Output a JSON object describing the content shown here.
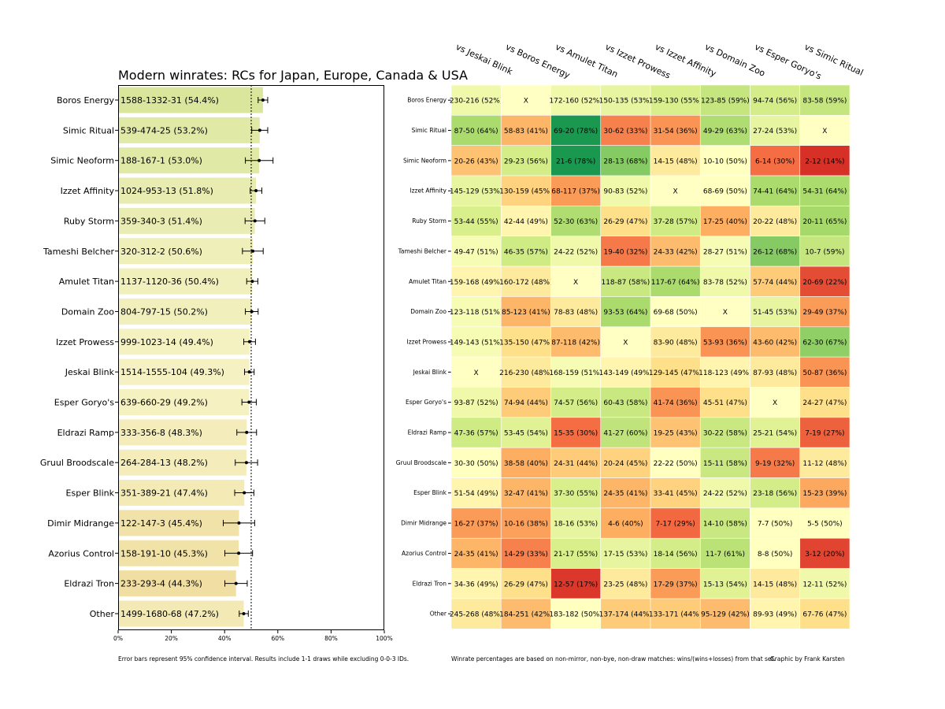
{
  "chart_data": [
    {
      "type": "bar",
      "title": "Modern winrates: RCs for Japan, Europe, Canada & USA",
      "categories": [
        "Boros Energy",
        "Simic Ritual",
        "Simic Neoform",
        "Izzet Affinity",
        "Ruby Storm",
        "Tameshi Belcher",
        "Amulet Titan",
        "Domain Zoo",
        "Izzet Prowess",
        "Jeskai Blink",
        "Esper Goryo's",
        "Eldrazi Ramp",
        "Gruul Broodscale",
        "Esper Blink",
        "Dimir Midrange",
        "Azorius Control",
        "Eldrazi Tron",
        "Other"
      ],
      "bar_labels": [
        "1588-1332-31 (54.4%)",
        "539-474-25 (53.2%)",
        "188-167-1 (53.0%)",
        "1024-953-13 (51.8%)",
        "359-340-3 (51.4%)",
        "320-312-2 (50.6%)",
        "1137-1120-36 (50.4%)",
        "804-797-15 (50.2%)",
        "999-1023-14 (49.4%)",
        "1514-1555-104 (49.3%)",
        "639-660-29 (49.2%)",
        "333-356-8 (48.3%)",
        "264-284-13 (48.2%)",
        "351-389-21 (47.4%)",
        "122-147-3 (45.4%)",
        "158-191-10 (45.3%)",
        "233-293-4 (44.3%)",
        "1499-1680-68 (47.2%)"
      ],
      "values": [
        54.4,
        53.2,
        53.0,
        51.8,
        51.4,
        50.6,
        50.4,
        50.2,
        49.4,
        49.3,
        49.2,
        48.3,
        48.2,
        47.4,
        45.4,
        45.3,
        44.3,
        47.2
      ],
      "ci_low": [
        52.6,
        50.2,
        47.8,
        49.6,
        47.7,
        46.7,
        48.3,
        47.8,
        47.2,
        47.5,
        46.5,
        44.6,
        44.0,
        43.8,
        39.5,
        40.1,
        40.1,
        45.5
      ],
      "ci_high": [
        56.2,
        56.2,
        58.2,
        54.0,
        55.1,
        54.5,
        52.5,
        52.6,
        51.6,
        51.1,
        51.9,
        52.0,
        52.4,
        51.0,
        51.3,
        50.5,
        48.5,
        48.9
      ],
      "xlim": [
        0,
        100
      ],
      "xticks": [
        "0%",
        "20%",
        "40%",
        "60%",
        "80%",
        "100%"
      ],
      "reference_line": 50,
      "footnote": "Error bars represent 95% confidence interval. Results include 1-1 draws while excluding 0-0-3 IDs."
    },
    {
      "type": "heatmap",
      "columns": [
        "vs Jeskai Blink",
        "vs Boros Energy",
        "vs Amulet Titan",
        "vs Izzet Prowess",
        "vs Izzet Affinity",
        "vs Domain Zoo",
        "vs Esper Goryo's",
        "vs Simic Ritual"
      ],
      "rows": [
        "Boros Energy",
        "Simic Ritual",
        "Simic Neoform",
        "Izzet Affinity",
        "Ruby Storm",
        "Tameshi Belcher",
        "Amulet Titan",
        "Domain Zoo",
        "Izzet Prowess",
        "Jeskai Blink",
        "Esper Goryo's",
        "Eldrazi Ramp",
        "Gruul Broodscale",
        "Esper Blink",
        "Dimir Midrange",
        "Azorius Control",
        "Eldrazi Tron",
        "Other"
      ],
      "cells": [
        [
          "230-216 (52%)",
          "X",
          "172-160 (52%)",
          "150-135 (53%)",
          "159-130 (55%)",
          "123-85 (59%)",
          "94-74 (56%)",
          "83-58 (59%)"
        ],
        [
          "87-50 (64%)",
          "58-83 (41%)",
          "69-20 (78%)",
          "30-62 (33%)",
          "31-54 (36%)",
          "49-29 (63%)",
          "27-24 (53%)",
          "X"
        ],
        [
          "20-26 (43%)",
          "29-23 (56%)",
          "21-6 (78%)",
          "28-13 (68%)",
          "14-15 (48%)",
          "10-10 (50%)",
          "6-14 (30%)",
          "2-12 (14%)"
        ],
        [
          "145-129 (53%)",
          "130-159 (45%)",
          "68-117 (37%)",
          "90-83 (52%)",
          "X",
          "68-69 (50%)",
          "74-41 (64%)",
          "54-31 (64%)"
        ],
        [
          "53-44 (55%)",
          "42-44 (49%)",
          "52-30 (63%)",
          "26-29 (47%)",
          "37-28 (57%)",
          "17-25 (40%)",
          "20-22 (48%)",
          "20-11 (65%)"
        ],
        [
          "49-47 (51%)",
          "46-35 (57%)",
          "24-22 (52%)",
          "19-40 (32%)",
          "24-33 (42%)",
          "28-27 (51%)",
          "26-12 (68%)",
          "10-7 (59%)"
        ],
        [
          "159-168 (49%)",
          "160-172 (48%)",
          "X",
          "118-87 (58%)",
          "117-67 (64%)",
          "83-78 (52%)",
          "57-74 (44%)",
          "20-69 (22%)"
        ],
        [
          "123-118 (51%)",
          "85-123 (41%)",
          "78-83 (48%)",
          "93-53 (64%)",
          "69-68 (50%)",
          "X",
          "51-45 (53%)",
          "29-49 (37%)"
        ],
        [
          "149-143 (51%)",
          "135-150 (47%)",
          "87-118 (42%)",
          "X",
          "83-90 (48%)",
          "53-93 (36%)",
          "43-60 (42%)",
          "62-30 (67%)"
        ],
        [
          "X",
          "216-230 (48%)",
          "168-159 (51%)",
          "143-149 (49%)",
          "129-145 (47%)",
          "118-123 (49%)",
          "87-93 (48%)",
          "50-87 (36%)"
        ],
        [
          "93-87 (52%)",
          "74-94 (44%)",
          "74-57 (56%)",
          "60-43 (58%)",
          "41-74 (36%)",
          "45-51 (47%)",
          "X",
          "24-27 (47%)"
        ],
        [
          "47-36 (57%)",
          "53-45 (54%)",
          "15-35 (30%)",
          "41-27 (60%)",
          "19-25 (43%)",
          "30-22 (58%)",
          "25-21 (54%)",
          "7-19 (27%)"
        ],
        [
          "30-30 (50%)",
          "38-58 (40%)",
          "24-31 (44%)",
          "20-24 (45%)",
          "22-22 (50%)",
          "15-11 (58%)",
          "9-19 (32%)",
          "11-12 (48%)"
        ],
        [
          "51-54 (49%)",
          "32-47 (41%)",
          "37-30 (55%)",
          "24-35 (41%)",
          "33-41 (45%)",
          "24-22 (52%)",
          "23-18 (56%)",
          "15-23 (39%)"
        ],
        [
          "16-27 (37%)",
          "10-16 (38%)",
          "18-16 (53%)",
          "4-6 (40%)",
          "7-17 (29%)",
          "14-10 (58%)",
          "7-7 (50%)",
          "5-5 (50%)"
        ],
        [
          "24-35 (41%)",
          "14-29 (33%)",
          "21-17 (55%)",
          "17-15 (53%)",
          "18-14 (56%)",
          "11-7 (61%)",
          "8-8 (50%)",
          "3-12 (20%)"
        ],
        [
          "34-36 (49%)",
          "26-29 (47%)",
          "12-57 (17%)",
          "23-25 (48%)",
          "17-29 (37%)",
          "15-13 (54%)",
          "14-15 (48%)",
          "12-11 (52%)"
        ],
        [
          "245-268 (48%)",
          "184-251 (42%)",
          "183-182 (50%)",
          "137-174 (44%)",
          "133-171 (44%)",
          "95-129 (42%)",
          "89-93 (49%)",
          "67-76 (47%)"
        ]
      ],
      "color_scale": "red-yellow-green (low winrate red, 50% yellow, high winrate green)",
      "footnote": "Winrate percentages are based on non-mirror, non-bye, non-draw matches: wins/(wins+losses) from that set.",
      "credit": "Graphic by Frank Karsten"
    }
  ]
}
